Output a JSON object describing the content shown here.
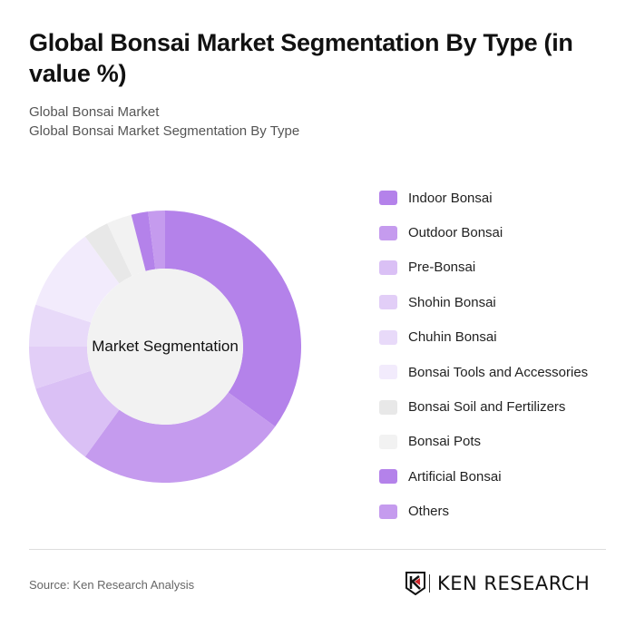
{
  "header": {
    "title": "Global Bonsai Market Segmentation By Type (in value %)",
    "subtitle_line1": "Global Bonsai Market",
    "subtitle_line2": "Global Bonsai Market Segmentation By Type"
  },
  "chart": {
    "center_label": "Market Segmentation"
  },
  "footer": {
    "source": "Source: Ken Research Analysis",
    "logo_text": "KEN RESEARCH"
  },
  "chart_data": {
    "type": "pie",
    "variant": "donut",
    "title": "Global Bonsai Market Segmentation By Type (in value %)",
    "subtitle": [
      "Global Bonsai Market",
      "Global Bonsai Market Segmentation By Type"
    ],
    "center_label": "Market Segmentation",
    "legend_position": "right",
    "categories": [
      "Indoor Bonsai",
      "Outdoor Bonsai",
      "Pre-Bonsai",
      "Shohin Bonsai",
      "Chuhin Bonsai",
      "Bonsai Tools and Accessories",
      "Bonsai Soil and Fertilizers",
      "Bonsai Pots",
      "Artificial Bonsai",
      "Others"
    ],
    "values": [
      35,
      25,
      10,
      5,
      5,
      10,
      3,
      3,
      2,
      2
    ],
    "colors": [
      "#b482ea",
      "#c59bee",
      "#dac0f5",
      "#e2cef7",
      "#e8daf9",
      "#f2ebfc",
      "#e8e8e8",
      "#f2f2f2",
      "#b482ea",
      "#c59bee"
    ],
    "unit": "%"
  },
  "legend": {
    "items": [
      {
        "label": "Indoor Bonsai",
        "color": "#b482ea"
      },
      {
        "label": "Outdoor Bonsai",
        "color": "#c59bee"
      },
      {
        "label": "Pre-Bonsai",
        "color": "#dac0f5"
      },
      {
        "label": "Shohin Bonsai",
        "color": "#e2cef7"
      },
      {
        "label": "Chuhin Bonsai",
        "color": "#e8daf9"
      },
      {
        "label": "Bonsai Tools and Accessories",
        "color": "#f2ebfc"
      },
      {
        "label": "Bonsai Soil and Fertilizers",
        "color": "#e8e8e8"
      },
      {
        "label": "Bonsai Pots",
        "color": "#f2f2f2"
      },
      {
        "label": "Artificial Bonsai",
        "color": "#b482ea"
      },
      {
        "label": "Others",
        "color": "#c59bee"
      }
    ]
  }
}
